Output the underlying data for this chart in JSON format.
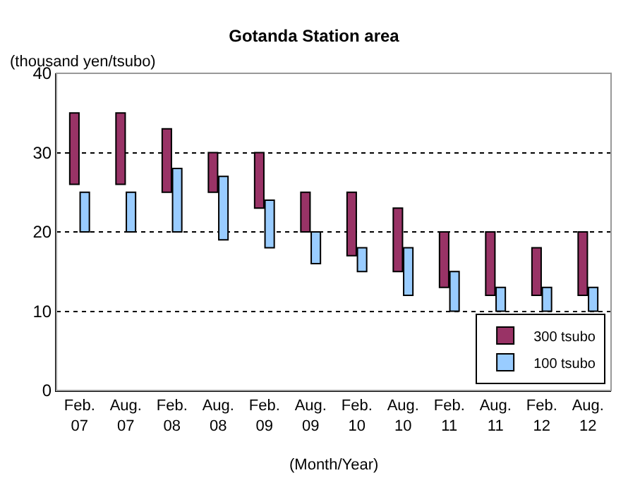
{
  "chart_data": {
    "type": "bar",
    "title": "Gotanda Station area",
    "xlabel": "(Month/Year)",
    "ylabel": "(thousand yen/tsubo)",
    "categories": [
      "Feb.\n07",
      "Aug.\n07",
      "Feb.\n08",
      "Aug.\n08",
      "Feb.\n09",
      "Aug.\n09",
      "Feb.\n10",
      "Aug.\n10",
      "Feb.\n11",
      "Aug.\n11",
      "Feb.\n12",
      "Aug.\n12"
    ],
    "series": [
      {
        "name": "300 tsubo",
        "color": "#993366",
        "base": [
          26,
          26,
          25,
          25,
          23,
          20,
          17,
          15,
          13,
          12,
          12,
          12
        ],
        "values": [
          9,
          9,
          8,
          5,
          7,
          5,
          8,
          8,
          7,
          8,
          6,
          8
        ]
      },
      {
        "name": "100 tsubo",
        "color": "#99ccff",
        "base": [
          20,
          20,
          20,
          19,
          18,
          16,
          15,
          12,
          10,
          10,
          10,
          10
        ],
        "values": [
          5,
          5,
          8,
          8,
          6,
          4,
          3,
          6,
          5,
          3,
          3,
          3
        ]
      }
    ],
    "ylim": [
      0,
      40
    ],
    "yticks": [
      0,
      10,
      20,
      30,
      40
    ],
    "grid": "y",
    "legend": "bottom right"
  }
}
